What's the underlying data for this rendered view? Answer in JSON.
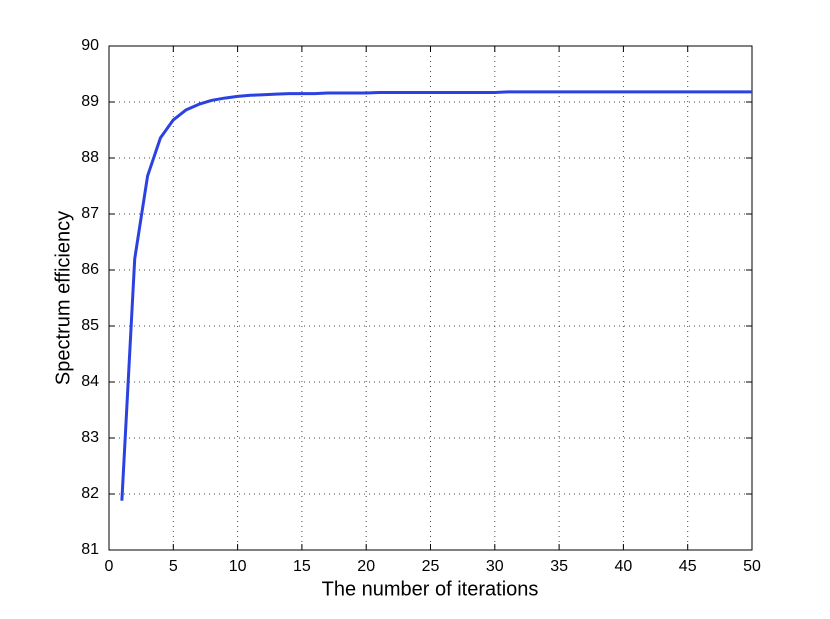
{
  "chart_data": {
    "type": "line",
    "xlabel": "The number of iterations",
    "ylabel": "Spectrum efficiency",
    "x": [
      1,
      2,
      3,
      4,
      5,
      6,
      7,
      8,
      9,
      10,
      11,
      12,
      13,
      14,
      15,
      16,
      17,
      18,
      19,
      20,
      21,
      22,
      23,
      24,
      25,
      26,
      27,
      28,
      29,
      30,
      31,
      32,
      33,
      34,
      35,
      36,
      37,
      38,
      39,
      40,
      41,
      42,
      43,
      44,
      45,
      46,
      47,
      48,
      49,
      50
    ],
    "series": [
      {
        "name": "Spectrum efficiency",
        "color": "#2b42e0",
        "values": [
          81.88,
          86.2,
          87.68,
          88.36,
          88.68,
          88.86,
          88.96,
          89.03,
          89.07,
          89.1,
          89.12,
          89.13,
          89.14,
          89.15,
          89.15,
          89.15,
          89.16,
          89.16,
          89.16,
          89.16,
          89.17,
          89.17,
          89.17,
          89.17,
          89.17,
          89.17,
          89.17,
          89.17,
          89.17,
          89.17,
          89.18,
          89.18,
          89.18,
          89.18,
          89.18,
          89.18,
          89.18,
          89.18,
          89.18,
          89.18,
          89.18,
          89.18,
          89.18,
          89.18,
          89.18,
          89.18,
          89.18,
          89.18,
          89.18,
          89.18
        ]
      }
    ],
    "xlim": [
      0,
      50
    ],
    "xticks": [
      0,
      5,
      10,
      15,
      20,
      25,
      30,
      35,
      40,
      45,
      50
    ],
    "ylim": [
      81,
      90
    ],
    "yticks": [
      81,
      82,
      83,
      84,
      85,
      86,
      87,
      88,
      89,
      90
    ],
    "grid": true
  }
}
